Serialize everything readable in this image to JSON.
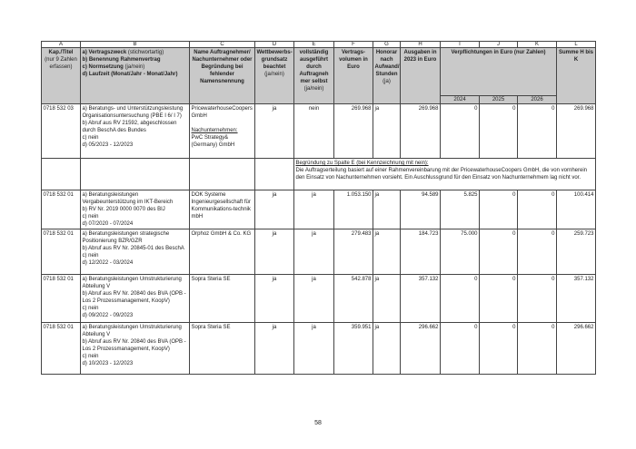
{
  "column_letters": [
    "A",
    "B",
    "C",
    "D",
    "E",
    "F",
    "G",
    "H",
    "I",
    "J",
    "K",
    "L"
  ],
  "header": {
    "a": {
      "title": "Kap./Titel",
      "note": "(nur 9 Zahlen erfassen)"
    },
    "b": {
      "l1": "a) Vertragszweck",
      "l1n": "(stichwortartig)",
      "l2": "b) Benennung Rahmenvertrag",
      "l3": "c)  Normsetzung",
      "l3n": "(ja/nein)",
      "l4": "d) Laufzeit (Monat/Jahr - Monat/Jahr)"
    },
    "c": "Name Auftragnehmer/ Nachunternehmer oder Begründung bei fehlender Namensnennung",
    "d": {
      "title": "Wettbewerbs-grundsatz beachtet",
      "note": "(ja/nein)"
    },
    "e": {
      "title": "vollständig ausgeführt durch Auftragneh mer selbst",
      "note": "(ja/nein)"
    },
    "f": "Vertrags-volumen in Euro",
    "g": {
      "title": "Honorar nach Aufwand/ Stunden",
      "note": "(ja)"
    },
    "h": "Ausgaben in 2023 in Euro",
    "ijk": "Verpflichtungen in Euro (nur Zahlen)",
    "years": [
      "2024",
      "2025",
      "2026"
    ],
    "l": "Summe H bis K"
  },
  "rows": [
    {
      "kap": "0718 532 03",
      "desc": [
        "a) Beratungs- und Unterstützungsleistung Organisationsuntersuchung (PBE I 6/ I 7)",
        "b) Abruf aus RV 21592, abgeschlossen durch BeschA des Bundes",
        "c) nein",
        "d) 05/2023 - 12/2023"
      ],
      "name": "PricewaterhouseCoopers GmbH",
      "sub_label": "Nachunternehmen:",
      "sub_name": "PwC Strategy& (Germany) GmbH",
      "d": "ja",
      "e": "nein",
      "f": "269.968",
      "g": "ja",
      "h": "269.968",
      "i": "0",
      "j": "0",
      "k": "0",
      "l": "269.968"
    },
    {
      "kap": "0718 532 01",
      "desc": [
        "a) Beratungsleistungen Vergabeunterstützung im IKT-Bereich",
        "b) RV Nr. 2019 0000 0070 des BIJ",
        "c) nein",
        "d) 07/2020 - 07/2024"
      ],
      "name": "DOK Systeme Ingenieurgesellschaft für Kommunikations-technik mbH",
      "d": "ja",
      "e": "ja",
      "f": "1.053.150",
      "g": "ja",
      "h": "94.589",
      "i": "5.825",
      "j": "0",
      "k": "0",
      "l": "100.414"
    },
    {
      "kap": "0718 532 01",
      "desc": [
        "a) Beratungsleistungen strategische Positionierung BZR/GZR",
        "b) Abruf aus RV Nr. 20845-01 des BeschA",
        "c) nein",
        "d) 12/2022 - 03/2024"
      ],
      "name": "Orphoz GmbH & Co. KG",
      "d": "ja",
      "e": "ja",
      "f": "279.483",
      "g": "ja",
      "h": "184.723",
      "i": "75.000",
      "j": "0",
      "k": "0",
      "l": "259.723"
    },
    {
      "kap": "0718 532 01",
      "desc": [
        "a) Beratungsleistungen Umstrukturierung Abteilung V",
        "b) Abruf aus RV Nr. 20840 des BVA (OPB - Los 2 Prozessmanagement, KoopV)",
        "c) nein",
        "d) 09/2022 - 09/2023"
      ],
      "name": "Sopra Steria SE",
      "d": "ja",
      "e": "ja",
      "f": "542.878",
      "g": "ja",
      "h": "357.132",
      "i": "0",
      "j": "0",
      "k": "0",
      "l": "357.132"
    },
    {
      "kap": "0718 532 01",
      "desc": [
        "a) Beratungsleistungen Umstrukturierung Abteilung V",
        "b) Abruf aus RV Nr. 20840 des BVA (OPB - Los 2 Prozessmanagement, KoopV)",
        "c) nein",
        "d) 10/2023 - 12/2023"
      ],
      "name": "Sopra Steria SE",
      "d": "ja",
      "e": "ja",
      "f": "359.951",
      "g": "ja",
      "h": "296.662",
      "i": "0",
      "j": "0",
      "k": "0",
      "l": "296.662"
    }
  ],
  "justification": {
    "title": "Begründung zu Spalte E (bei Kennzeichnung mit nein):",
    "text": "Die Auftragserteilung basiert auf einer Rahmenvereinbarung mit der PricewaterhouseCoopers GmbH, die von vornherein den Einsatz von Nachunternehmen vorsieht. Ein Auschlussgrund für den Einsatz von Nachunternehmem lag nicht vor."
  },
  "page_number": "58"
}
